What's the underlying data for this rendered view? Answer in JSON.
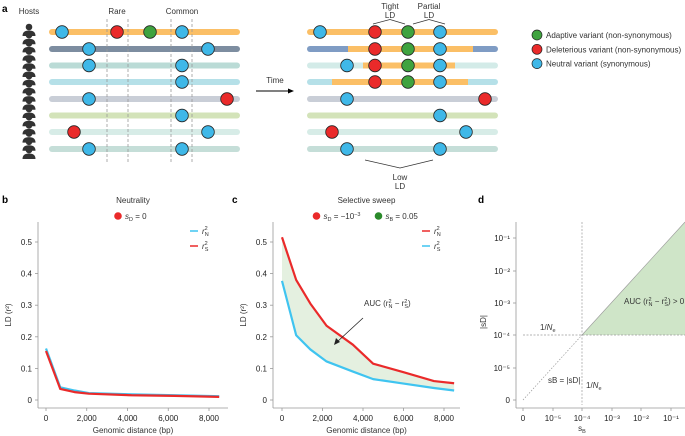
{
  "panel_labels": {
    "a": "a",
    "b": "b",
    "c": "c",
    "d": "d"
  },
  "panel_a": {
    "hosts_label": "Hosts",
    "rare_label": "Rare",
    "common_label": "Common",
    "time_label": "Time",
    "tight_ld": [
      "Tight",
      "LD"
    ],
    "partial_ld": [
      "Partial",
      "LD"
    ],
    "low_ld": [
      "Low",
      "LD"
    ],
    "colors": {
      "adaptive": "#3fa33f",
      "deleterious": "#ea2a2a",
      "neutral": "#3fb8e8",
      "sweep_haplotype": "#fbbf66"
    },
    "bar_colors": [
      "#fbbf66",
      "#7d8da0",
      "#badbd6",
      "#b5e0e8",
      "#c9ced7",
      "#d3e3b9",
      "#d7ece7",
      "#c5ded8"
    ],
    "bar_colors_after": [
      "#fbbf66",
      "#7f9cc4",
      "#d3ebe8",
      "#b5e0e8",
      "#c9ced7",
      "#d3e3b9",
      "#d7ece7",
      "#c5ded8"
    ],
    "before": [
      [
        "neutral",
        null,
        null,
        "deleterious",
        "adaptive",
        "neutral",
        null,
        null
      ],
      [
        null,
        null,
        "neutral",
        null,
        null,
        null,
        "neutral",
        null
      ],
      [
        null,
        null,
        "neutral",
        null,
        null,
        "neutral",
        null,
        null
      ],
      [
        null,
        null,
        null,
        null,
        null,
        "neutral",
        null,
        null
      ],
      [
        null,
        null,
        "neutral",
        null,
        null,
        null,
        null,
        "deleterious"
      ],
      [
        null,
        null,
        null,
        null,
        null,
        "neutral",
        null,
        null
      ],
      [
        null,
        "deleterious",
        null,
        null,
        null,
        null,
        "neutral",
        null
      ],
      [
        null,
        null,
        "neutral",
        null,
        null,
        "neutral",
        null,
        null
      ]
    ],
    "after": [
      [
        "neutral",
        null,
        null,
        "deleterious",
        "adaptive",
        "neutral",
        null,
        null
      ],
      [
        null,
        null,
        null,
        "deleterious",
        "adaptive",
        "neutral",
        null,
        null
      ],
      [
        null,
        null,
        "neutral",
        "deleterious",
        "adaptive",
        "neutral",
        null,
        null
      ],
      [
        null,
        null,
        null,
        "deleterious",
        "adaptive",
        "neutral",
        null,
        null
      ],
      [
        null,
        null,
        "neutral",
        null,
        null,
        null,
        null,
        "deleterious"
      ],
      [
        null,
        null,
        null,
        null,
        null,
        "neutral",
        null,
        null
      ],
      [
        null,
        "deleterious",
        null,
        null,
        null,
        null,
        "neutral",
        null
      ],
      [
        null,
        null,
        "neutral",
        null,
        null,
        "neutral",
        null,
        null
      ]
    ],
    "legend": [
      {
        "type": "adaptive",
        "label": "Adaptive variant (non-synonymous)"
      },
      {
        "type": "deleterious",
        "label": "Deleterious variant (non-synonymous)"
      },
      {
        "type": "neutral",
        "label": "Neutral variant (synonymous)"
      }
    ]
  },
  "chart_data": [
    {
      "type": "line",
      "panel": "b",
      "title": "Neutrality",
      "selection_legend": [
        {
          "symbol": "s",
          "sub": "D",
          "text": " = 0",
          "color": "#ea2a2a"
        }
      ],
      "xlabel": "Genomic distance (bp)",
      "ylabel": "LD (r²)",
      "xlim": [
        0,
        8500
      ],
      "ylim": [
        0,
        0.55
      ],
      "xticks": [
        "0",
        "2,000",
        "4,000",
        "6,000",
        "8,000"
      ],
      "xtick_values": [
        0,
        2000,
        4000,
        6000,
        8000
      ],
      "yticks": [
        "0",
        "0.1",
        "0.2",
        "0.3",
        "0.4",
        "0.5"
      ],
      "ytick_values": [
        0,
        0.1,
        0.2,
        0.3,
        0.4,
        0.5
      ],
      "x": [
        0,
        700,
        1400,
        2100,
        4200,
        6300,
        8500
      ],
      "series": [
        {
          "name": "r²N",
          "sub": "N",
          "color": "#3fc4f0",
          "values": [
            0.163,
            0.04,
            0.03,
            0.022,
            0.018,
            0.015,
            0.012
          ]
        },
        {
          "name": "r²S",
          "sub": "S",
          "color": "#ea2a2a",
          "values": [
            0.155,
            0.035,
            0.025,
            0.02,
            0.015,
            0.013,
            0.01
          ]
        }
      ],
      "legend_order": [
        "N",
        "S"
      ],
      "legend_placement": "top-right",
      "grid": false
    },
    {
      "type": "area",
      "panel": "c",
      "title": "Selective sweep",
      "selection_legend": [
        {
          "symbol": "s",
          "sub": "D",
          "text": " = −10",
          "sup": "−3",
          "color": "#ea2a2a"
        },
        {
          "symbol": "s",
          "sub": "B",
          "text": " = 0.05",
          "color": "#2a8a2a"
        }
      ],
      "xlabel": "Genomic distance (bp)",
      "ylabel": "LD (r²)",
      "xlim": [
        0,
        8500
      ],
      "ylim": [
        0,
        0.55
      ],
      "xticks": [
        "0",
        "2,000",
        "4,000",
        "6,000",
        "8,000"
      ],
      "xtick_values": [
        0,
        2000,
        4000,
        6000,
        8000
      ],
      "yticks": [
        "0",
        "0.1",
        "0.2",
        "0.3",
        "0.4",
        "0.5"
      ],
      "ytick_values": [
        0,
        0.1,
        0.2,
        0.3,
        0.4,
        0.5
      ],
      "x": [
        0,
        700,
        1400,
        2200,
        3500,
        4500,
        6000,
        7500,
        8500
      ],
      "series": [
        {
          "name": "r²N",
          "sub": "N",
          "color": "#ea2a2a",
          "values": [
            0.515,
            0.38,
            0.305,
            0.235,
            0.175,
            0.115,
            0.088,
            0.06,
            0.053
          ]
        },
        {
          "name": "r²S",
          "sub": "S",
          "color": "#3fc4f0",
          "values": [
            0.377,
            0.205,
            0.16,
            0.122,
            0.09,
            0.066,
            0.052,
            0.038,
            0.03
          ]
        }
      ],
      "fill_color": "#e4f0e0",
      "annotation": "AUC (r²N − r²S)",
      "legend_placement": "top-right",
      "grid": false
    },
    {
      "type": "area",
      "panel": "d",
      "xlabel": "sB",
      "ylabel": "|sD|",
      "scale": "log (with 0)",
      "xticks": [
        "0",
        "10⁻⁵",
        "10⁻⁴",
        "10⁻³",
        "10⁻²",
        "10⁻¹"
      ],
      "yticks": [
        "0",
        "10⁻⁵",
        "10⁻⁴",
        "10⁻³",
        "10⁻²",
        "10⁻¹"
      ],
      "threshold": "1/Ne",
      "threshold_value": 0.0001,
      "diagonal_label": "sB = |sD|",
      "region_label": "AUC (r²N − r²S) > 0",
      "region": "sB > |sD| and |sD| > 1/Ne",
      "fill_color": "#cfe5c8"
    }
  ]
}
